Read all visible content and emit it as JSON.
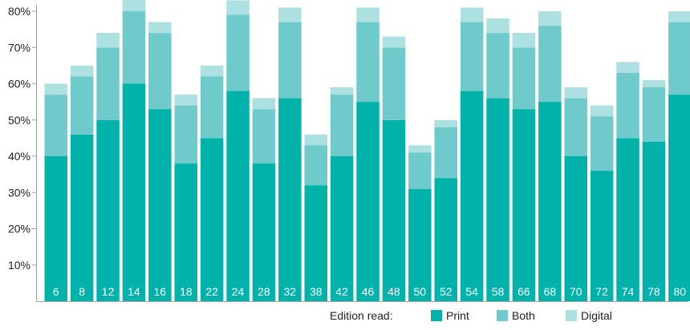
{
  "chart_data": {
    "type": "bar",
    "stacked": true,
    "categories": [
      "6",
      "8",
      "12",
      "14",
      "16",
      "18",
      "22",
      "24",
      "28",
      "32",
      "38",
      "42",
      "46",
      "48",
      "50",
      "52",
      "54",
      "58",
      "66",
      "68",
      "70",
      "72",
      "74",
      "78",
      "80"
    ],
    "series": [
      {
        "name": "Print",
        "color": "#00b2a9",
        "values": [
          40,
          46,
          50,
          60,
          53,
          38,
          45,
          58,
          38,
          56,
          32,
          40,
          55,
          50,
          31,
          34,
          58,
          56,
          53,
          55,
          40,
          36,
          45,
          44,
          57
        ]
      },
      {
        "name": "Both",
        "color": "#6ecacb",
        "values": [
          17,
          16,
          20,
          20,
          21,
          16,
          17,
          21,
          15,
          21,
          11,
          17,
          22,
          20,
          10,
          14,
          19,
          18,
          17,
          21,
          16,
          15,
          18,
          15,
          20
        ]
      },
      {
        "name": "Digital",
        "color": "#ade0e1",
        "values": [
          3,
          3,
          4,
          4,
          3,
          3,
          3,
          4,
          3,
          4,
          3,
          2,
          4,
          3,
          2,
          2,
          4,
          4,
          4,
          4,
          3,
          3,
          3,
          2,
          3
        ]
      }
    ],
    "yticks": [
      "10%",
      "20%",
      "30%",
      "40%",
      "50%",
      "60%",
      "70%",
      "80%"
    ],
    "ylim": [
      0,
      80
    ],
    "grid": false,
    "legend": {
      "title": "Edition read:",
      "placement": "bottom-right",
      "items": [
        "Print",
        "Both",
        "Digital"
      ]
    }
  }
}
